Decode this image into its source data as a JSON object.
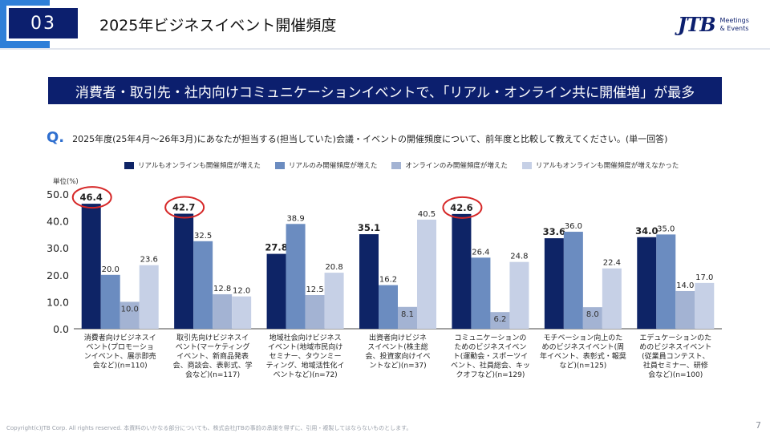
{
  "header": {
    "section_number": "03",
    "title": "2025年ビジネスイベント開催頻度",
    "logo_mark": "JTB",
    "logo_sub_line1": "Meetings",
    "logo_sub_line2": "& Events"
  },
  "banner": {
    "text": "消費者・取引先・社内向けコミュニケーションイベントで、「リアル・オンライン共に開催増」が最多"
  },
  "question": {
    "mark": "Q.",
    "text": "2025年度(25年4月～26年3月)にあなたが担当する(担当していた)会議・イベントの開催頻度について、前年度と比較して教えてください。(単一回答)"
  },
  "footer": {
    "copyright": "Copyright(c)JTB Corp. All rights reserved. 本資料のいかなる部分についても、株式会社JTBの事前の承諾を得ずに、引用・複製してはならないものとします。",
    "page_number": "7"
  },
  "colors": {
    "header_navy": "#0c1f6e",
    "accent_blue": "#2f7fd8",
    "highlight_circle": "#d62828"
  },
  "chart_data": {
    "type": "bar",
    "unit_label": "単位(%)",
    "ylim": [
      0,
      50
    ],
    "yticks": [
      "0.0",
      "10.0",
      "20.0",
      "30.0",
      "40.0",
      "50.0"
    ],
    "grid": false,
    "legend_position": "top",
    "categories": [
      [
        "消費者向けビジネスイ",
        "ベント(プロモーショ",
        "ンイベント、展示即売",
        "会など)(n=110)"
      ],
      [
        "取引先向けビジネスイ",
        "ベント(マーケティング",
        "イベント、新商品発表",
        "会、商談会、表彰式、学",
        "会など)(n=117)"
      ],
      [
        "地域社会向けビジネス",
        "イベント(地域市民向け",
        "セミナー、タウンミー",
        "ティング、地域活性化イ",
        "ベントなど)(n=72)"
      ],
      [
        "出資者向けビジネ",
        "スイベント(株主総",
        "会、投資家向けイベ",
        "ントなど)(n=37)"
      ],
      [
        "コミュニケーションの",
        "ためのビジネスイベン",
        "ト(運動会・スポーツイ",
        "ベント、社員総会、キッ",
        "クオフなど)(n=129)"
      ],
      [
        "モチベーション向上のた",
        "めのビジネスイベント(周",
        "年イベント、表彰式・報奨",
        "など)(n=125)"
      ],
      [
        "エデュケーションのた",
        "めのビジネスイベント",
        "(従業員コンテスト、",
        "社員セミナー、研修",
        "会など)(n=100)"
      ]
    ],
    "series": [
      {
        "name": "リアルもオンラインも開催頻度が増えた",
        "color": "#0e2466",
        "values": [
          46.4,
          42.7,
          27.8,
          35.1,
          42.6,
          33.6,
          34.0
        ]
      },
      {
        "name": "リアルのみ開催頻度が増えた",
        "color": "#6b8cc0",
        "values": [
          20.0,
          32.5,
          38.9,
          16.2,
          26.4,
          36.0,
          35.0
        ]
      },
      {
        "name": "オンラインのみ開催頻度が増えた",
        "color": "#a3b3d3",
        "values": [
          10.0,
          12.8,
          12.5,
          8.1,
          6.2,
          8.0,
          14.0
        ]
      },
      {
        "name": "リアルもオンラインも開催頻度が増えなかった",
        "color": "#c6d0e6",
        "values": [
          23.6,
          12.0,
          20.8,
          40.5,
          24.8,
          22.4,
          17.0
        ]
      }
    ],
    "highlighted_categories": [
      0,
      1,
      4
    ]
  }
}
